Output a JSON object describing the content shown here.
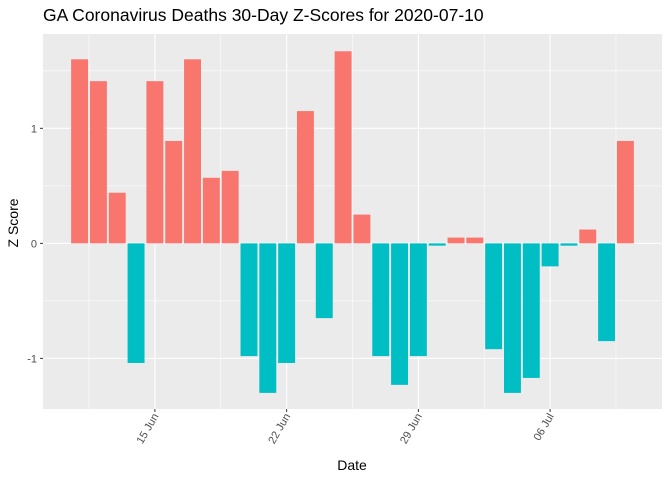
{
  "chart_data": {
    "type": "bar",
    "title": "GA Coronavirus Deaths 30-Day Z-Scores for 2020-07-10",
    "xlabel": "Date",
    "ylabel": "Z Score",
    "x_ticks": [
      "15 Jun",
      "22 Jun",
      "29 Jun",
      "06 Jul"
    ],
    "y_ticks": [
      "-1",
      "0",
      "1"
    ],
    "ylim": [
      -1.44,
      1.82
    ],
    "grid": true,
    "legend": "none",
    "colors": {
      "positive": "#F8766D",
      "negative": "#00BFC4",
      "panel": "#EBEBEB",
      "grid": "#FFFFFF"
    },
    "categories": [
      "2020-06-11",
      "2020-06-12",
      "2020-06-13",
      "2020-06-14",
      "2020-06-15",
      "2020-06-16",
      "2020-06-17",
      "2020-06-18",
      "2020-06-19",
      "2020-06-20",
      "2020-06-21",
      "2020-06-22",
      "2020-06-23",
      "2020-06-24",
      "2020-06-25",
      "2020-06-26",
      "2020-06-27",
      "2020-06-28",
      "2020-06-29",
      "2020-06-30",
      "2020-07-01",
      "2020-07-02",
      "2020-07-03",
      "2020-07-04",
      "2020-07-05",
      "2020-07-06",
      "2020-07-07",
      "2020-07-08",
      "2020-07-09",
      "2020-07-10"
    ],
    "values": [
      1.6,
      1.41,
      0.44,
      -1.04,
      1.41,
      0.89,
      1.6,
      0.57,
      0.63,
      -0.98,
      -1.3,
      -1.04,
      1.15,
      -0.65,
      1.67,
      0.25,
      -0.98,
      -1.23,
      -0.98,
      -0.02,
      0.05,
      0.05,
      -0.92,
      -1.3,
      -1.17,
      -0.2,
      -0.02,
      0.12,
      -0.85,
      0.89
    ]
  }
}
